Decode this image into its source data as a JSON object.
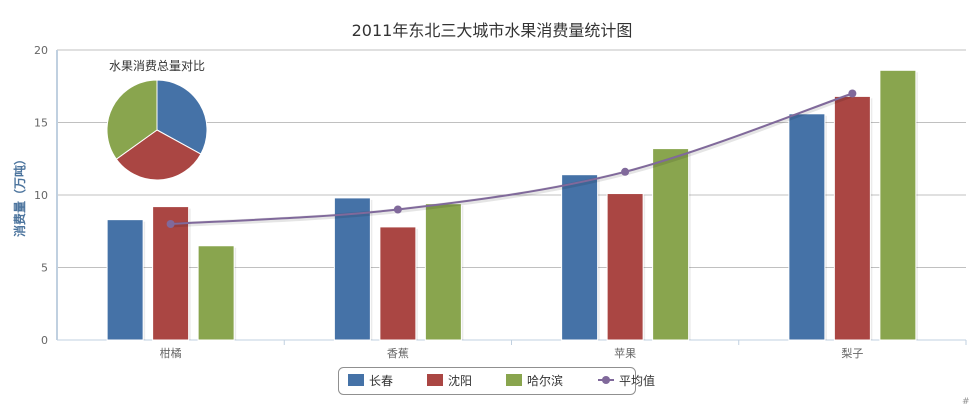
{
  "chart_data": {
    "type": "bar",
    "title": "2011年东北三大城市水果消费量统计图",
    "xlabel": "",
    "ylabel": "消费量（万吨）",
    "ylim": [
      0,
      20
    ],
    "yticks": [
      0,
      5,
      10,
      15,
      20
    ],
    "grid": true,
    "categories": [
      "柑橘",
      "香蕉",
      "苹果",
      "梨子"
    ],
    "series": [
      {
        "name": "长春",
        "type": "bar",
        "color": "#4572A7",
        "values": [
          8.3,
          9.8,
          11.4,
          15.6
        ]
      },
      {
        "name": "沈阳",
        "type": "bar",
        "color": "#AA4643",
        "values": [
          9.2,
          7.8,
          10.1,
          16.8
        ]
      },
      {
        "name": "哈尔滨",
        "type": "bar",
        "color": "#89A54E",
        "values": [
          6.5,
          9.4,
          13.2,
          18.6
        ]
      },
      {
        "name": "平均值",
        "type": "line",
        "color": "#80699B",
        "values": [
          8.0,
          9.0,
          11.6,
          17.0
        ]
      }
    ],
    "pie": {
      "title": "水果消费总量对比",
      "slices": [
        {
          "name": "长春",
          "value": 45.1,
          "color": "#4572A7"
        },
        {
          "name": "沈阳",
          "value": 43.9,
          "color": "#AA4643"
        },
        {
          "name": "哈尔滨",
          "value": 47.7,
          "color": "#89A54E"
        }
      ]
    },
    "legend_position": "bottom-center",
    "credits": "#"
  }
}
